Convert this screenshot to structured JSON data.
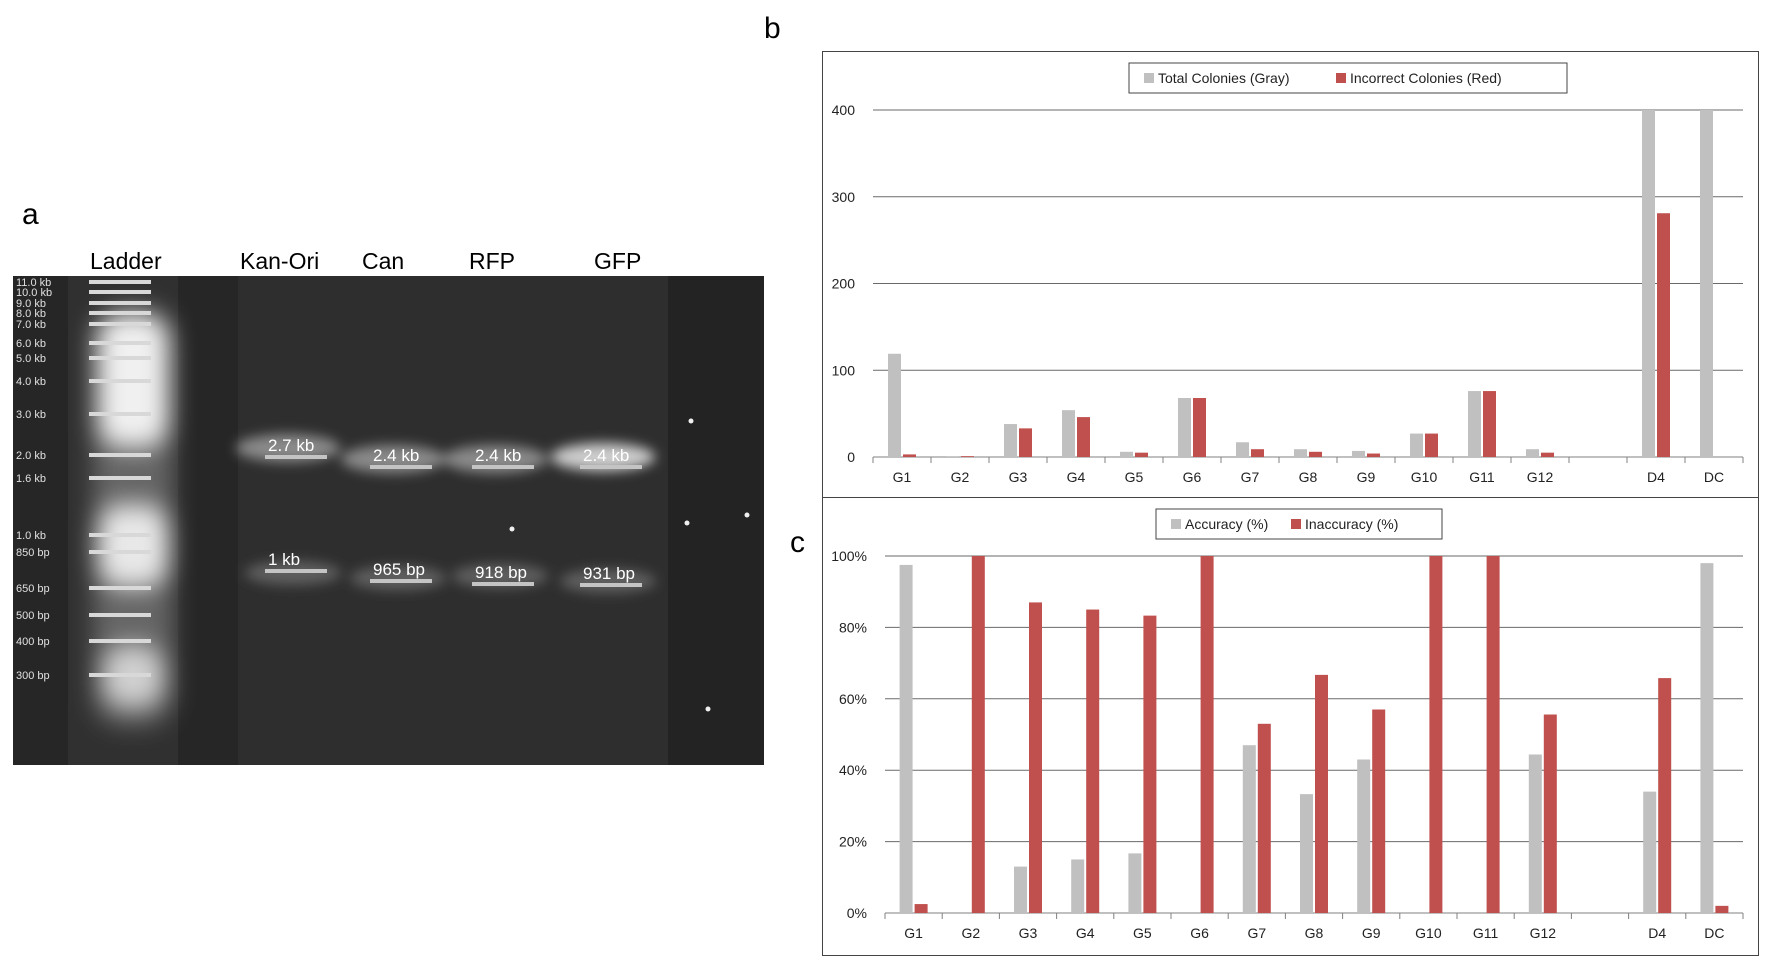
{
  "panels": {
    "a": "a",
    "b": "b",
    "c": "c"
  },
  "gel": {
    "lane_labels": [
      "Ladder",
      "Kan-Ori",
      "Can",
      "RFP",
      "GFP"
    ],
    "ladder_marks": [
      "11.0 kb",
      "10.0 kb",
      "9.0 kb",
      "8.0 kb",
      "7.0 kb",
      "6.0 kb",
      "5.0 kb",
      "4.0 kb",
      "3.0 kb",
      "2.0 kb",
      "1.6 kb",
      "1.0 kb",
      "850 bp",
      "650 bp",
      "500 bp",
      "400 bp",
      "300 bp"
    ],
    "band_labels": {
      "upper": [
        "2.7 kb",
        "2.4 kb",
        "2.4 kb",
        "2.4 kb"
      ],
      "lower": [
        "1 kb",
        "965 bp",
        "918 bp",
        "931 bp"
      ]
    }
  },
  "colors": {
    "gray_series": "#c0c0c0",
    "red_series": "#c0504d",
    "gel_background": "#2a2a2a",
    "band_marker": "#b8b8b8"
  },
  "chart_data": [
    {
      "type": "bar",
      "categories": [
        "G1",
        "G2",
        "G3",
        "G4",
        "G5",
        "G6",
        "G7",
        "G8",
        "G9",
        "G10",
        "G11",
        "G12",
        "",
        "D4",
        "DC"
      ],
      "series": [
        {
          "name": "Total Colonies (Gray)",
          "color": "#c0c0c0",
          "values": [
            119,
            1,
            38,
            54,
            6,
            68,
            17,
            9,
            7,
            27,
            76,
            9,
            null,
            400,
            400
          ]
        },
        {
          "name": "Incorrect Colonies (Red)",
          "color": "#c0504d",
          "values": [
            3,
            1,
            33,
            46,
            5,
            68,
            9,
            6,
            4,
            27,
            76,
            5,
            null,
            281,
            null
          ]
        }
      ],
      "yticks": [
        "0",
        "100",
        "200",
        "300",
        "400"
      ],
      "ylim": [
        0,
        400
      ],
      "grid": true,
      "legend": "top-center",
      "title": "",
      "xlabel": "",
      "ylabel": ""
    },
    {
      "type": "bar",
      "categories": [
        "G1",
        "G2",
        "G3",
        "G4",
        "G5",
        "G6",
        "G7",
        "G8",
        "G9",
        "G10",
        "G11",
        "G12",
        "",
        "D4",
        "DC"
      ],
      "series": [
        {
          "name": "Accuracy (%)",
          "color": "#c0c0c0",
          "values": [
            97.5,
            0,
            13,
            15,
            16.7,
            0,
            47,
            33.3,
            43,
            0,
            0,
            44.4,
            null,
            34,
            98
          ]
        },
        {
          "name": "Inaccuracy (%)",
          "color": "#c0504d",
          "values": [
            2.5,
            100,
            87,
            85,
            83.3,
            100,
            53,
            66.7,
            57,
            100,
            100,
            55.6,
            null,
            65.8,
            2
          ]
        }
      ],
      "yticks": [
        "0%",
        "20%",
        "40%",
        "60%",
        "80%",
        "100%"
      ],
      "ylim": [
        0,
        100
      ],
      "grid": true,
      "legend": "top-center",
      "title": "",
      "xlabel": "",
      "ylabel": ""
    }
  ]
}
